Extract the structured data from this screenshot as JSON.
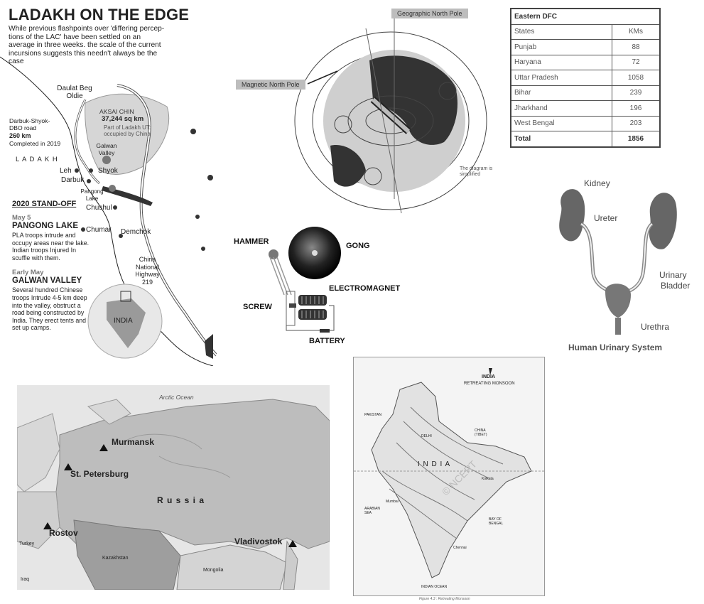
{
  "ladakh": {
    "title": "LADAKH ON THE EDGE",
    "subtitle": "While previous flashpoints over 'differing percep-tions of the LAC' have been settled on an average in three weeks. the scale of the current incursions suggests this needn't always be the case",
    "labels": {
      "daulat": "Daulat Beg Oldie",
      "aksai": "AKSAI CHIN",
      "aksai_area": "37,244 sq km",
      "aksai_note": "Part of Ladakh UT: occupied by China",
      "road_a": "Darbuk-Shyok-",
      "road_b": "DBO road",
      "road_km": "260 km",
      "road_done": "Completed in 2019",
      "ladakh": "L A D A K H",
      "galwan": "Galwan Valley",
      "leh": "Leh",
      "shyok": "Shyok",
      "darbuk": "Darbuk",
      "pangong": "Pangong Lake",
      "chushul": "Chushul",
      "chumar": "Chumar",
      "demchok": "Demchok",
      "highway": "China National Highway 219",
      "india": "INDIA"
    },
    "standoff": {
      "heading": "2020 STAND-OFF",
      "events": [
        {
          "date": "May 5",
          "place": "PANGONG LAKE",
          "text": "PLA troops intrude and occupy areas near the lake. Indian troops Injured In scuffle with them."
        },
        {
          "date": "Early May",
          "place": "GALWAN VALLEY",
          "text": "Several hundred Chinese troops Intrude 4-5 km deep into the valley, obstruct a road being constructed by India. They erect tents and set up camps."
        }
      ]
    }
  },
  "magnet": {
    "geo_pole": "Geographic North Pole",
    "mag_pole": "Magnetic North Pole",
    "note": "The diagram is simplified"
  },
  "dfc": {
    "title": "Eastern DFC",
    "col_states": "States",
    "col_kms": "KMs",
    "rows": [
      {
        "state": "Punjab",
        "km": "88"
      },
      {
        "state": "Haryana",
        "km": "72"
      },
      {
        "state": "Uttar Pradesh",
        "km": "1058"
      },
      {
        "state": "Bihar",
        "km": "239"
      },
      {
        "state": "Jharkhand",
        "km": "196"
      },
      {
        "state": "West Bengal",
        "km": "203"
      }
    ],
    "total_label": "Total",
    "total_value": "1856"
  },
  "bell": {
    "hammer": "HAMMER",
    "gong": "GONG",
    "electromagnet": "ELECTROMAGNET",
    "screw": "SCREW",
    "battery": "BATTERY"
  },
  "urinary": {
    "kidney": "Kidney",
    "ureter": "Ureter",
    "bladder_a": "Urinary",
    "bladder_b": "Bladder",
    "urethra": "Urethra",
    "caption": "Human Urinary System"
  },
  "russia": {
    "arctic": "Arctic Ocean",
    "murmansk": "Murmansk",
    "stpete": "St. Petersburg",
    "russia": "R u s s i a",
    "rostov": "Rostov",
    "vladivostok": "Vladivostok",
    "kazakhstan": "Kazakhstan",
    "mongolia": "Mongolia",
    "iraq": "Iraq",
    "turkey": "Turkey"
  },
  "monsoon": {
    "title": "INDIA",
    "subtitle": "RETREATING MONSOON",
    "india": "I N D I A",
    "pakistan": "PAKISTAN",
    "china": "CHINA (TIBET)",
    "arabian": "ARABIAN SEA",
    "bengal": "BAY OF BENGAL",
    "indian_ocean": "INDIAN OCEAN",
    "delhi": "DELHI",
    "mumbai": "Mumbai",
    "kolkata": "Kolkata",
    "chennai": "Chennai",
    "caption": "Figure 4.3 : Retreating Monsoon"
  }
}
